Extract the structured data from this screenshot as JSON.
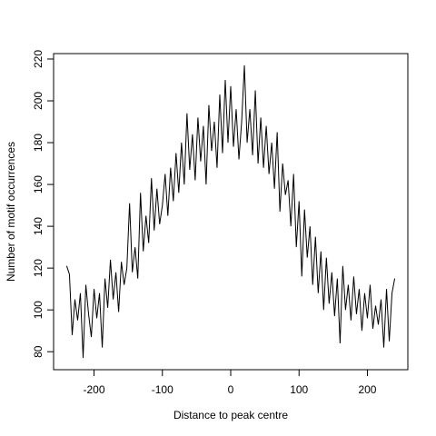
{
  "chart_data": {
    "type": "line",
    "x_label": "Distance to peak centre",
    "y_label": "Number of motif occurrences",
    "x": [
      -240,
      -236,
      -232,
      -228,
      -224,
      -220,
      -216,
      -212,
      -208,
      -204,
      -200,
      -196,
      -192,
      -188,
      -184,
      -180,
      -176,
      -172,
      -168,
      -164,
      -160,
      -156,
      -152,
      -148,
      -144,
      -140,
      -136,
      -132,
      -128,
      -124,
      -120,
      -116,
      -112,
      -108,
      -104,
      -100,
      -96,
      -92,
      -88,
      -84,
      -80,
      -76,
      -72,
      -68,
      -64,
      -60,
      -56,
      -52,
      -48,
      -44,
      -40,
      -36,
      -32,
      -28,
      -24,
      -20,
      -16,
      -12,
      -8,
      -4,
      0,
      4,
      8,
      12,
      16,
      20,
      24,
      28,
      32,
      36,
      40,
      44,
      48,
      52,
      56,
      60,
      64,
      68,
      72,
      76,
      80,
      84,
      88,
      92,
      96,
      100,
      104,
      108,
      112,
      116,
      120,
      124,
      128,
      132,
      136,
      140,
      144,
      148,
      152,
      156,
      160,
      164,
      168,
      172,
      176,
      180,
      184,
      188,
      192,
      196,
      200,
      204,
      208,
      212,
      216,
      220,
      224,
      228,
      232,
      236,
      240
    ],
    "values": [
      121,
      117,
      88,
      105,
      95,
      108,
      77,
      112,
      98,
      87,
      110,
      96,
      108,
      82,
      115,
      101,
      124,
      105,
      118,
      99,
      123,
      112,
      120,
      151,
      118,
      130,
      115,
      156,
      128,
      145,
      132,
      163,
      138,
      158,
      141,
      150,
      165,
      145,
      168,
      152,
      175,
      156,
      180,
      160,
      194,
      167,
      184,
      162,
      192,
      171,
      188,
      160,
      198,
      176,
      190,
      168,
      203,
      175,
      210,
      180,
      207,
      178,
      196,
      172,
      190,
      217,
      180,
      196,
      174,
      205,
      170,
      192,
      168,
      188,
      165,
      180,
      158,
      185,
      147,
      170,
      155,
      162,
      140,
      165,
      130,
      152,
      116,
      148,
      125,
      140,
      112,
      135,
      108,
      128,
      100,
      125,
      103,
      118,
      97,
      115,
      84,
      121,
      100,
      112,
      95,
      116,
      98,
      110,
      90,
      108,
      96,
      112,
      91,
      102,
      93,
      105,
      82,
      110,
      85,
      108,
      115
    ],
    "color": "#000000",
    "xlim": [
      -259.2,
      259.2
    ],
    "ylim": [
      71.4,
      222.6
    ],
    "xticks": [
      -200,
      -100,
      0,
      100,
      200
    ],
    "yticks": [
      80,
      100,
      120,
      140,
      160,
      180,
      200,
      220
    ]
  }
}
